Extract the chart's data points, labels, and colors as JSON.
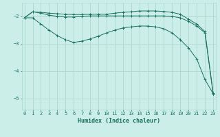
{
  "xlabel": "Humidex (Indice chaleur)",
  "background_color": "#cceee8",
  "grid_color": "#aad8d0",
  "line_color": "#1a7060",
  "x": [
    0,
    1,
    2,
    3,
    4,
    5,
    6,
    7,
    8,
    9,
    10,
    11,
    12,
    13,
    14,
    15,
    16,
    17,
    18,
    19,
    20,
    21,
    22,
    23
  ],
  "y_max": [
    -2.05,
    -1.83,
    -1.85,
    -1.88,
    -1.9,
    -1.92,
    -1.93,
    -1.93,
    -1.92,
    -1.92,
    -1.92,
    -1.88,
    -1.85,
    -1.83,
    -1.8,
    -1.8,
    -1.8,
    -1.82,
    -1.85,
    -1.92,
    -2.1,
    -2.28,
    -2.55,
    -4.8
  ],
  "y_mean": [
    -2.05,
    -1.83,
    -1.88,
    -1.95,
    -2.0,
    -2.02,
    -2.02,
    -2.0,
    -1.98,
    -1.98,
    -1.98,
    -1.98,
    -1.98,
    -1.98,
    -1.98,
    -1.98,
    -1.98,
    -1.98,
    -2.0,
    -2.05,
    -2.18,
    -2.35,
    -2.6,
    -4.82
  ],
  "y_min": [
    -2.05,
    -2.05,
    -2.28,
    -2.5,
    -2.7,
    -2.85,
    -2.95,
    -2.9,
    -2.82,
    -2.72,
    -2.6,
    -2.5,
    -2.42,
    -2.38,
    -2.35,
    -2.35,
    -2.38,
    -2.45,
    -2.6,
    -2.85,
    -3.15,
    -3.55,
    -4.3,
    -4.82
  ],
  "ylim": [
    -5.4,
    -1.5
  ],
  "xlim": [
    -0.3,
    23.3
  ],
  "yticks": [
    -5,
    -4,
    -3,
    -2
  ],
  "xticks": [
    0,
    1,
    2,
    3,
    4,
    5,
    6,
    7,
    8,
    9,
    10,
    11,
    12,
    13,
    14,
    15,
    16,
    17,
    18,
    19,
    20,
    21,
    22,
    23
  ]
}
